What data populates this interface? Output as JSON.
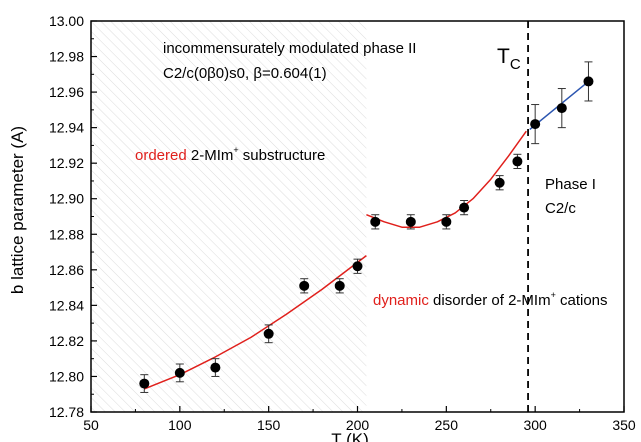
{
  "chart_data": {
    "type": "scatter",
    "xlabel": "T (K)",
    "ylabel": "b lattice parameter (A)",
    "xlim": [
      50,
      350
    ],
    "ylim": [
      12.78,
      13.0
    ],
    "x_ticks": [
      50,
      100,
      150,
      200,
      250,
      300,
      350
    ],
    "y_ticks": [
      12.78,
      12.8,
      12.82,
      12.84,
      12.86,
      12.88,
      12.9,
      12.92,
      12.94,
      12.96,
      12.98,
      13.0
    ],
    "x_tick_labels": [
      "50",
      "100",
      "150",
      "200",
      "250",
      "300",
      "350"
    ],
    "y_tick_labels": [
      "12.78",
      "12.80",
      "12.82",
      "12.84",
      "12.86",
      "12.88",
      "12.90",
      "12.92",
      "12.94",
      "12.96",
      "12.98",
      "13.00"
    ],
    "grid": false,
    "series": [
      {
        "x": [
          80,
          100,
          120,
          150,
          170,
          190,
          200,
          210,
          230,
          250,
          260,
          280,
          290,
          300,
          315,
          330
        ],
        "y": [
          12.796,
          12.802,
          12.805,
          12.824,
          12.851,
          12.851,
          12.862,
          12.887,
          12.887,
          12.887,
          12.895,
          12.909,
          12.921,
          12.942,
          12.951,
          12.966
        ],
        "err": [
          0.005,
          0.005,
          0.005,
          0.005,
          0.004,
          0.004,
          0.004,
          0.004,
          0.004,
          0.004,
          0.004,
          0.004,
          0.004,
          0.011,
          0.011,
          0.011
        ],
        "color": "#000000"
      }
    ],
    "fits": [
      {
        "color": "#e0201c",
        "x": [
          80,
          100,
          120,
          140,
          160,
          180,
          205
        ],
        "y": [
          12.793,
          12.801,
          12.811,
          12.822,
          12.835,
          12.849,
          12.868
        ]
      },
      {
        "color": "#e0201c",
        "x": [
          205,
          215,
          225,
          235,
          245,
          255,
          265,
          275,
          285,
          295
        ],
        "y": [
          12.891,
          12.887,
          12.884,
          12.884,
          12.887,
          12.892,
          12.9,
          12.911,
          12.924,
          12.938
        ]
      },
      {
        "color": "#2b55b0",
        "x": [
          297,
          330
        ],
        "y": [
          12.939,
          12.966
        ]
      }
    ],
    "hatched_region_x": [
      50,
      205
    ],
    "transition_x": 296,
    "annotations": {
      "phase2_line1": "incommensurately modulated phase II",
      "phase2_line2": "C2/c(0β0)s0,  β=0.604(1)",
      "tc": "T",
      "tc_sub": "C",
      "ordered_red": "ordered",
      "ordered_rest": " 2-MIm",
      "ordered_sup": "+",
      "ordered_end": " substructure",
      "dynamic_red": "dynamic",
      "dynamic_rest": " disorder of 2-MIm",
      "dynamic_sup": "+",
      "dynamic_end": " cations",
      "phase1_line1": "Phase I",
      "phase1_line2": "C2/c"
    },
    "colors": {
      "ordered": "#e0201c",
      "dynamic": "#e0201c",
      "fit_low": "#e0201c",
      "fit_high": "#2b55b0",
      "points": "#000000"
    }
  }
}
